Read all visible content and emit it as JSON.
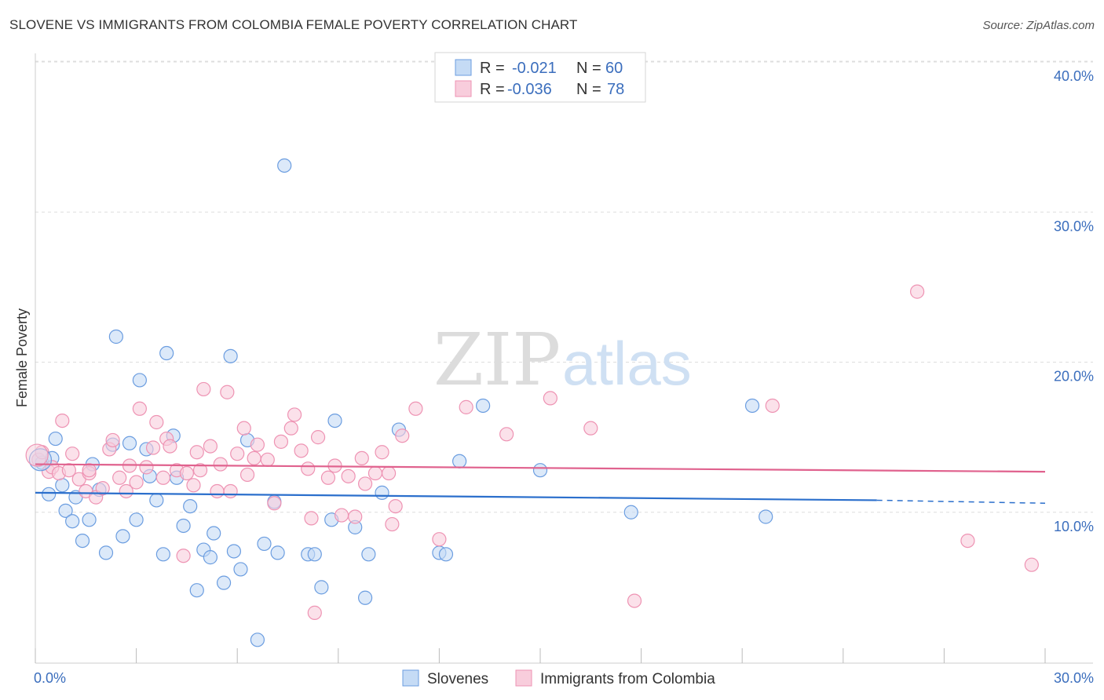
{
  "title": "SLOVENE VS IMMIGRANTS FROM COLOMBIA FEMALE POVERTY CORRELATION CHART",
  "source": "Source: ZipAtlas.com",
  "watermark": {
    "zip": "ZIP",
    "atlas": "atlas"
  },
  "chart_data": {
    "type": "scatter",
    "title": "SLOVENE VS IMMIGRANTS FROM COLOMBIA FEMALE POVERTY CORRELATION CHART",
    "ylabel": "Female Poverty",
    "xlabel": "",
    "xlim": [
      0,
      30
    ],
    "ylim": [
      0,
      40
    ],
    "x_tick_labels": [
      {
        "v": 0,
        "label": "0.0%"
      },
      {
        "v": 30,
        "label": "30.0%"
      }
    ],
    "y_tick_labels": [
      {
        "v": 10,
        "label": "10.0%"
      },
      {
        "v": 20,
        "label": "20.0%"
      },
      {
        "v": 30,
        "label": "30.0%"
      },
      {
        "v": 40,
        "label": "40.0%"
      }
    ],
    "legend_top": [
      {
        "r_label": "R =",
        "r": "-0.021",
        "n_label": "N =",
        "n": "60",
        "color": "#4a86d4"
      },
      {
        "r_label": "R =",
        "r": "-0.036",
        "n_label": "N =",
        "n": "78",
        "color": "#e8729b"
      }
    ],
    "series": [
      {
        "name": "Slovenes",
        "color": "#6b9de0",
        "fill": "#c5dbf5",
        "trend_color": "#2b6fcc",
        "trend": {
          "x0": 0,
          "y0": 11.3,
          "x1": 25,
          "y1": 10.8,
          "dash_to_x": 30,
          "dash_to_y": 10.6
        },
        "points": [
          [
            0.2,
            13.3
          ],
          [
            0.4,
            11.2
          ],
          [
            0.5,
            13.6
          ],
          [
            0.6,
            14.9
          ],
          [
            0.8,
            11.8
          ],
          [
            0.9,
            10.1
          ],
          [
            1.1,
            9.4
          ],
          [
            1.2,
            11.0
          ],
          [
            1.4,
            8.1
          ],
          [
            1.6,
            9.5
          ],
          [
            1.7,
            13.2
          ],
          [
            1.9,
            11.5
          ],
          [
            2.1,
            7.3
          ],
          [
            2.3,
            14.5
          ],
          [
            2.4,
            21.7
          ],
          [
            2.6,
            8.4
          ],
          [
            2.8,
            14.6
          ],
          [
            3.0,
            9.5
          ],
          [
            3.1,
            18.8
          ],
          [
            3.3,
            14.2
          ],
          [
            3.4,
            12.4
          ],
          [
            3.6,
            10.8
          ],
          [
            3.8,
            7.2
          ],
          [
            3.9,
            20.6
          ],
          [
            4.1,
            15.1
          ],
          [
            4.2,
            12.3
          ],
          [
            4.4,
            9.1
          ],
          [
            4.6,
            10.4
          ],
          [
            4.8,
            4.8
          ],
          [
            5.0,
            7.5
          ],
          [
            5.2,
            7.0
          ],
          [
            5.3,
            8.6
          ],
          [
            5.6,
            5.3
          ],
          [
            5.8,
            20.4
          ],
          [
            5.9,
            7.4
          ],
          [
            6.1,
            6.2
          ],
          [
            6.3,
            14.8
          ],
          [
            6.6,
            1.5
          ],
          [
            6.8,
            7.9
          ],
          [
            7.1,
            10.7
          ],
          [
            7.2,
            7.3
          ],
          [
            7.4,
            33.1
          ],
          [
            8.1,
            7.2
          ],
          [
            8.3,
            7.2
          ],
          [
            8.5,
            5.0
          ],
          [
            8.8,
            9.5
          ],
          [
            8.9,
            16.1
          ],
          [
            9.5,
            9.0
          ],
          [
            9.8,
            4.3
          ],
          [
            9.9,
            7.2
          ],
          [
            10.3,
            11.3
          ],
          [
            10.8,
            15.5
          ],
          [
            12.0,
            7.3
          ],
          [
            12.2,
            7.2
          ],
          [
            12.6,
            13.4
          ],
          [
            13.3,
            17.1
          ],
          [
            15.0,
            12.8
          ],
          [
            17.7,
            10.0
          ],
          [
            21.3,
            17.1
          ],
          [
            21.7,
            9.7
          ]
        ]
      },
      {
        "name": "Immigrants from Colombia",
        "color": "#ee93b3",
        "fill": "#f8cddc",
        "trend_color": "#e0628e",
        "trend": {
          "x0": 0,
          "y0": 13.2,
          "x1": 30,
          "y1": 12.7
        },
        "points": [
          [
            0.1,
            13.5
          ],
          [
            0.2,
            14.0
          ],
          [
            0.4,
            12.7
          ],
          [
            0.5,
            13.0
          ],
          [
            0.7,
            12.6
          ],
          [
            0.8,
            16.1
          ],
          [
            1.0,
            12.8
          ],
          [
            1.1,
            13.9
          ],
          [
            1.3,
            12.2
          ],
          [
            1.5,
            11.4
          ],
          [
            1.6,
            12.6
          ],
          [
            1.8,
            11.0
          ],
          [
            2.0,
            11.6
          ],
          [
            2.2,
            14.2
          ],
          [
            2.3,
            14.8
          ],
          [
            2.5,
            12.3
          ],
          [
            2.7,
            11.4
          ],
          [
            2.8,
            13.1
          ],
          [
            3.0,
            12.0
          ],
          [
            3.1,
            16.9
          ],
          [
            3.3,
            13.0
          ],
          [
            3.5,
            14.3
          ],
          [
            3.6,
            16.0
          ],
          [
            3.8,
            12.3
          ],
          [
            3.9,
            14.9
          ],
          [
            4.0,
            14.4
          ],
          [
            4.2,
            12.8
          ],
          [
            4.4,
            7.1
          ],
          [
            4.5,
            12.6
          ],
          [
            4.7,
            11.8
          ],
          [
            4.8,
            14.0
          ],
          [
            5.0,
            18.2
          ],
          [
            5.2,
            14.4
          ],
          [
            5.4,
            11.4
          ],
          [
            5.5,
            13.2
          ],
          [
            5.7,
            18.0
          ],
          [
            5.8,
            11.4
          ],
          [
            6.0,
            13.9
          ],
          [
            6.2,
            15.6
          ],
          [
            6.3,
            12.5
          ],
          [
            6.5,
            13.6
          ],
          [
            6.6,
            14.5
          ],
          [
            6.9,
            13.5
          ],
          [
            7.1,
            10.6
          ],
          [
            7.3,
            14.7
          ],
          [
            7.6,
            15.6
          ],
          [
            7.7,
            16.5
          ],
          [
            7.9,
            14.1
          ],
          [
            8.1,
            12.9
          ],
          [
            8.2,
            9.6
          ],
          [
            8.3,
            3.3
          ],
          [
            8.4,
            15.0
          ],
          [
            8.7,
            12.3
          ],
          [
            8.9,
            13.1
          ],
          [
            9.1,
            9.8
          ],
          [
            9.3,
            12.4
          ],
          [
            9.5,
            9.7
          ],
          [
            9.7,
            13.6
          ],
          [
            9.8,
            11.9
          ],
          [
            10.1,
            12.6
          ],
          [
            10.3,
            14.0
          ],
          [
            10.5,
            12.6
          ],
          [
            10.6,
            9.2
          ],
          [
            10.7,
            10.4
          ],
          [
            10.9,
            15.1
          ],
          [
            11.3,
            16.9
          ],
          [
            12.0,
            8.2
          ],
          [
            12.8,
            17.0
          ],
          [
            14.0,
            15.2
          ],
          [
            15.3,
            17.6
          ],
          [
            16.5,
            15.6
          ],
          [
            17.8,
            4.1
          ],
          [
            21.9,
            17.1
          ],
          [
            26.2,
            24.7
          ],
          [
            27.7,
            8.1
          ],
          [
            29.6,
            6.5
          ],
          [
            1.6,
            12.8
          ],
          [
            4.9,
            12.8
          ]
        ]
      }
    ]
  }
}
